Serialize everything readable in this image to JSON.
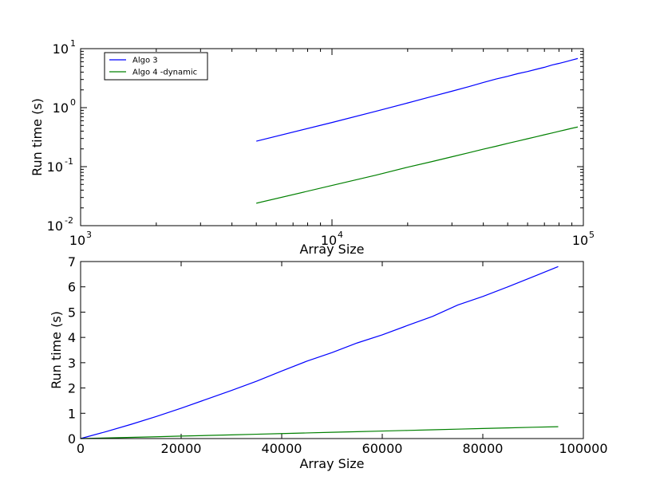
{
  "chart_data": [
    {
      "type": "line",
      "xscale": "log",
      "yscale": "log",
      "xlim": [
        1000,
        100000
      ],
      "ylim": [
        0.01,
        10
      ],
      "xlabel": "Array Size",
      "ylabel": "Run time (s)",
      "x_ticks": [
        {
          "base": "10",
          "exp": "3",
          "value": 1000
        },
        {
          "base": "10",
          "exp": "4",
          "value": 10000
        },
        {
          "base": "10",
          "exp": "5",
          "value": 100000
        }
      ],
      "y_ticks": [
        {
          "base": "10",
          "exp": "-2",
          "value": 0.01
        },
        {
          "base": "10",
          "exp": "-1",
          "value": 0.1
        },
        {
          "base": "10",
          "exp": "0",
          "value": 1
        },
        {
          "base": "10",
          "exp": "1",
          "value": 10
        }
      ],
      "legend": {
        "position": "upper-left"
      },
      "series": [
        {
          "name": "Algo 3",
          "color": "#0000ff",
          "x": [
            5000,
            10000,
            15000,
            20000,
            25000,
            30000,
            35000,
            40000,
            45000,
            50000,
            55000,
            60000,
            65000,
            70000,
            75000,
            80000,
            85000,
            90000,
            95000
          ],
          "y": [
            0.27,
            0.56,
            0.87,
            1.2,
            1.55,
            1.9,
            2.27,
            2.67,
            3.06,
            3.4,
            3.78,
            4.1,
            4.47,
            4.83,
            5.28,
            5.62,
            6.0,
            6.4,
            6.8
          ]
        },
        {
          "name": "Algo 4 -dynamic",
          "color": "#008000",
          "x": [
            5000,
            10000,
            15000,
            20000,
            25000,
            30000,
            35000,
            40000,
            45000,
            50000,
            55000,
            60000,
            65000,
            70000,
            75000,
            80000,
            85000,
            90000,
            95000
          ],
          "y": [
            0.024,
            0.048,
            0.072,
            0.098,
            0.122,
            0.147,
            0.172,
            0.198,
            0.222,
            0.248,
            0.272,
            0.297,
            0.322,
            0.347,
            0.372,
            0.397,
            0.422,
            0.447,
            0.47
          ]
        }
      ]
    },
    {
      "type": "line",
      "xscale": "linear",
      "yscale": "linear",
      "xlim": [
        0,
        100000
      ],
      "ylim": [
        0,
        7
      ],
      "xlabel": "Array Size",
      "ylabel": "Run time (s)",
      "x_ticks": [
        "0",
        "20000",
        "40000",
        "60000",
        "80000",
        "100000"
      ],
      "y_ticks": [
        "0",
        "1",
        "2",
        "3",
        "4",
        "5",
        "6",
        "7"
      ],
      "series": [
        {
          "color": "#0000ff",
          "x": [
            0,
            5000,
            10000,
            15000,
            20000,
            25000,
            30000,
            35000,
            40000,
            45000,
            50000,
            55000,
            60000,
            65000,
            70000,
            75000,
            80000,
            85000,
            90000,
            95000
          ],
          "y": [
            0,
            0.27,
            0.56,
            0.87,
            1.2,
            1.55,
            1.9,
            2.27,
            2.67,
            3.06,
            3.4,
            3.78,
            4.1,
            4.47,
            4.83,
            5.28,
            5.62,
            6.0,
            6.4,
            6.8
          ]
        },
        {
          "color": "#008000",
          "x": [
            0,
            5000,
            10000,
            15000,
            20000,
            25000,
            30000,
            35000,
            40000,
            45000,
            50000,
            55000,
            60000,
            65000,
            70000,
            75000,
            80000,
            85000,
            90000,
            95000
          ],
          "y": [
            0,
            0.024,
            0.048,
            0.072,
            0.098,
            0.122,
            0.147,
            0.172,
            0.198,
            0.222,
            0.248,
            0.272,
            0.297,
            0.322,
            0.347,
            0.372,
            0.397,
            0.422,
            0.447,
            0.47
          ]
        }
      ]
    }
  ]
}
